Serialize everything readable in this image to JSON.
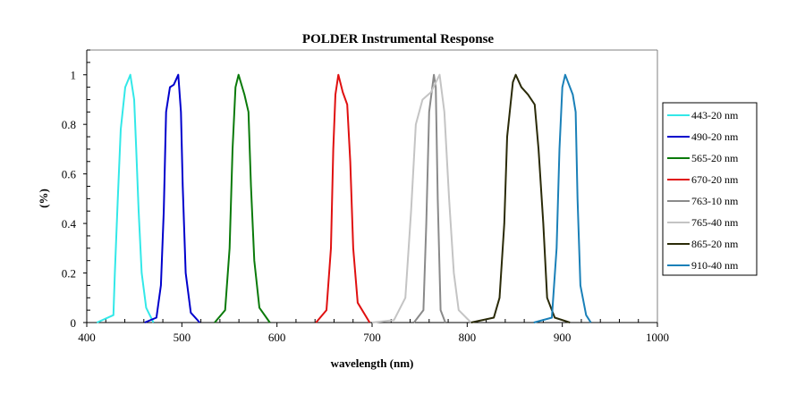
{
  "chart_data": {
    "type": "line",
    "title": "POLDER Instrumental Response",
    "xlabel": "wavelength (nm)",
    "ylabel": "(%)",
    "xlim": [
      400,
      1000
    ],
    "ylim": [
      0,
      1.1
    ],
    "x_ticks": [
      "400",
      "500",
      "600",
      "700",
      "800",
      "900",
      "1000"
    ],
    "y_ticks": [
      "0",
      "0.2",
      "0.4",
      "0.6",
      "0.8",
      "1"
    ],
    "grid": false,
    "legend_position": "right",
    "series": [
      {
        "name": "443-20 nm",
        "color": "#33e8e8",
        "points": [
          [
            410.6,
            0
          ],
          [
            428,
            0.03
          ],
          [
            429.5,
            0.2
          ],
          [
            432.6,
            0.5
          ],
          [
            435.7,
            0.78
          ],
          [
            440.4,
            0.95
          ],
          [
            445.8,
            1.0
          ],
          [
            449.8,
            0.9
          ],
          [
            452,
            0.7
          ],
          [
            454.5,
            0.45
          ],
          [
            457.7,
            0.2
          ],
          [
            462.4,
            0.06
          ],
          [
            470.2,
            0
          ]
        ]
      },
      {
        "name": "490-20 nm",
        "color": "#0000cc",
        "points": [
          [
            460.8,
            0
          ],
          [
            473.3,
            0.02
          ],
          [
            478,
            0.15
          ],
          [
            481,
            0.45
          ],
          [
            483.4,
            0.85
          ],
          [
            487.5,
            0.95
          ],
          [
            491.5,
            0.96
          ],
          [
            496.2,
            1.0
          ],
          [
            499,
            0.85
          ],
          [
            500.9,
            0.55
          ],
          [
            504,
            0.2
          ],
          [
            509.4,
            0.04
          ],
          [
            518.8,
            0
          ]
        ]
      },
      {
        "name": "565-20 nm",
        "color": "#0a7a0a",
        "points": [
          [
            534.5,
            0
          ],
          [
            545.5,
            0.05
          ],
          [
            550.2,
            0.3
          ],
          [
            553.3,
            0.7
          ],
          [
            556.4,
            0.95
          ],
          [
            559.6,
            1.0
          ],
          [
            565.8,
            0.92
          ],
          [
            570,
            0.85
          ],
          [
            572.7,
            0.55
          ],
          [
            576.1,
            0.25
          ],
          [
            581.5,
            0.06
          ],
          [
            592.5,
            0
          ]
        ]
      },
      {
        "name": "670-20 nm",
        "color": "#e01010",
        "points": [
          [
            641,
            0
          ],
          [
            652,
            0.05
          ],
          [
            656.7,
            0.3
          ],
          [
            659.2,
            0.7
          ],
          [
            661.4,
            0.92
          ],
          [
            664.5,
            1.0
          ],
          [
            669.2,
            0.93
          ],
          [
            673.9,
            0.88
          ],
          [
            677.1,
            0.65
          ],
          [
            680.2,
            0.3
          ],
          [
            684.9,
            0.08
          ],
          [
            697.5,
            0
          ]
        ]
      },
      {
        "name": "763-10 nm",
        "color": "#8a8a8a",
        "points": [
          [
            744,
            0
          ],
          [
            754,
            0.05
          ],
          [
            757,
            0.4
          ],
          [
            760,
            0.85
          ],
          [
            765,
            1.0
          ],
          [
            767,
            0.95
          ],
          [
            769,
            0.5
          ],
          [
            772,
            0.05
          ],
          [
            777,
            0
          ]
        ]
      },
      {
        "name": "765-40 nm",
        "color": "#c4c4c4",
        "points": [
          [
            700,
            0
          ],
          [
            723,
            0.01
          ],
          [
            735,
            0.1
          ],
          [
            741,
            0.45
          ],
          [
            746,
            0.8
          ],
          [
            753,
            0.9
          ],
          [
            762,
            0.93
          ],
          [
            771,
            1.0
          ],
          [
            776,
            0.85
          ],
          [
            781,
            0.5
          ],
          [
            786,
            0.2
          ],
          [
            791,
            0.05
          ],
          [
            804,
            0
          ]
        ]
      },
      {
        "name": "865-20 nm",
        "color": "#2a2a08",
        "points": [
          [
            804,
            0
          ],
          [
            828,
            0.02
          ],
          [
            834,
            0.1
          ],
          [
            839,
            0.4
          ],
          [
            842,
            0.75
          ],
          [
            848,
            0.97
          ],
          [
            851,
            1.0
          ],
          [
            857,
            0.95
          ],
          [
            864,
            0.92
          ],
          [
            871,
            0.88
          ],
          [
            875,
            0.7
          ],
          [
            880,
            0.4
          ],
          [
            884,
            0.1
          ],
          [
            892,
            0.02
          ],
          [
            908,
            0
          ]
        ]
      },
      {
        "name": "910-40 nm",
        "color": "#1a80b8",
        "points": [
          [
            870,
            0
          ],
          [
            889,
            0.02
          ],
          [
            894,
            0.3
          ],
          [
            897,
            0.7
          ],
          [
            900,
            0.95
          ],
          [
            903,
            1.0
          ],
          [
            911,
            0.92
          ],
          [
            914,
            0.85
          ],
          [
            916,
            0.5
          ],
          [
            919,
            0.15
          ],
          [
            925,
            0.03
          ],
          [
            930,
            0
          ]
        ]
      }
    ]
  }
}
